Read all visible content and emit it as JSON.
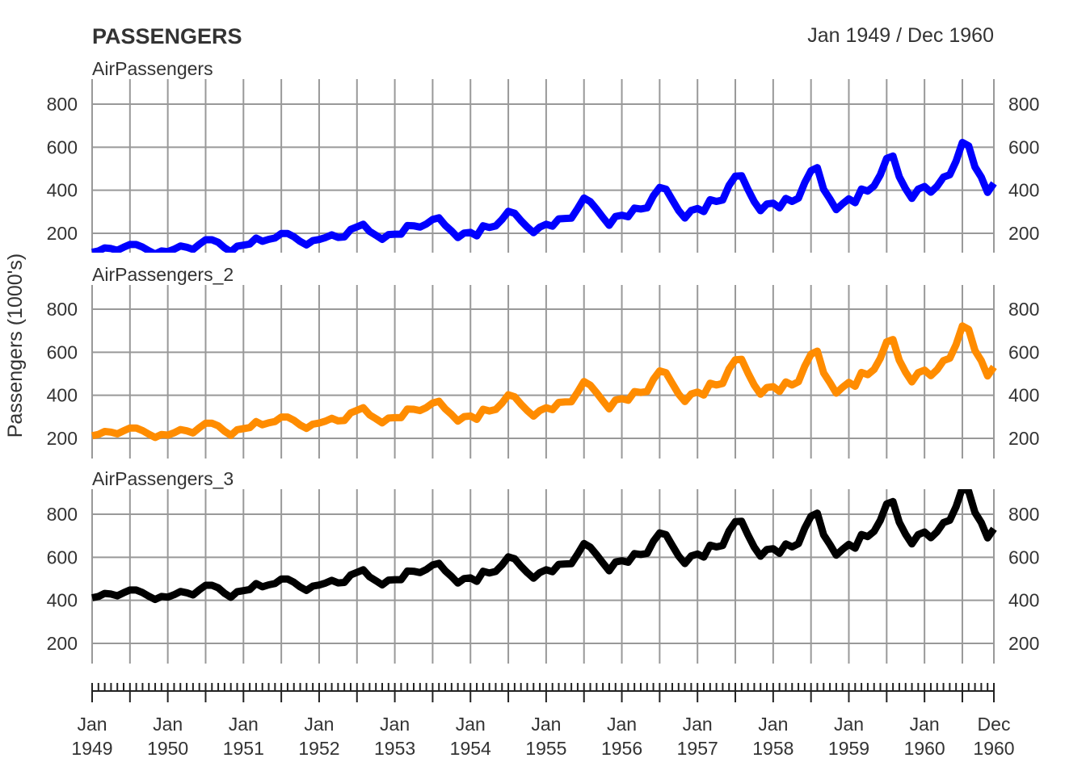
{
  "chart_data": {
    "type": "line",
    "title": "PASSENGERS",
    "date_range": "Jan 1949 / Dec 1960",
    "ylabel": "Passengers (1000's)",
    "xlabel": "",
    "ylim": [
      110,
      916
    ],
    "grid": true,
    "yticks": [
      200,
      400,
      600,
      800
    ],
    "x_start": "Jan 1949",
    "x_end": "Dec 1960",
    "xtick_labels": [
      [
        "Jan",
        "1949"
      ],
      [
        "Jan",
        "1950"
      ],
      [
        "Jan",
        "1951"
      ],
      [
        "Jan",
        "1952"
      ],
      [
        "Jan",
        "1953"
      ],
      [
        "Jan",
        "1954"
      ],
      [
        "Jan",
        "1955"
      ],
      [
        "Jan",
        "1956"
      ],
      [
        "Jan",
        "1957"
      ],
      [
        "Jan",
        "1958"
      ],
      [
        "Jan",
        "1959"
      ],
      [
        "Jan",
        "1960"
      ],
      [
        "Dec",
        "1960"
      ]
    ],
    "series": [
      {
        "name": "AirPassengers",
        "color": "#0000ff",
        "offset": 0
      },
      {
        "name": "AirPassengers_2",
        "color": "#ff8c00",
        "offset": 100
      },
      {
        "name": "AirPassengers_3",
        "color": "#000000",
        "offset": 300
      }
    ],
    "base_values": [
      112,
      118,
      132,
      129,
      121,
      135,
      148,
      148,
      136,
      119,
      104,
      118,
      115,
      126,
      141,
      135,
      125,
      149,
      170,
      170,
      158,
      133,
      114,
      140,
      145,
      150,
      178,
      163,
      172,
      178,
      199,
      199,
      184,
      162,
      146,
      166,
      171,
      180,
      193,
      181,
      183,
      218,
      230,
      242,
      209,
      191,
      172,
      194,
      196,
      196,
      236,
      235,
      229,
      243,
      264,
      272,
      237,
      211,
      180,
      201,
      204,
      188,
      235,
      227,
      234,
      264,
      302,
      293,
      259,
      229,
      203,
      229,
      242,
      233,
      267,
      269,
      270,
      315,
      364,
      347,
      312,
      274,
      237,
      278,
      284,
      277,
      317,
      313,
      318,
      374,
      413,
      405,
      355,
      306,
      271,
      306,
      315,
      301,
      356,
      348,
      355,
      422,
      465,
      467,
      404,
      347,
      305,
      336,
      340,
      318,
      362,
      348,
      363,
      435,
      491,
      505,
      404,
      359,
      310,
      337,
      360,
      342,
      406,
      396,
      420,
      472,
      548,
      559,
      463,
      407,
      362,
      405,
      417,
      391,
      419,
      461,
      472,
      535,
      622,
      606,
      508,
      461,
      390,
      432
    ]
  }
}
